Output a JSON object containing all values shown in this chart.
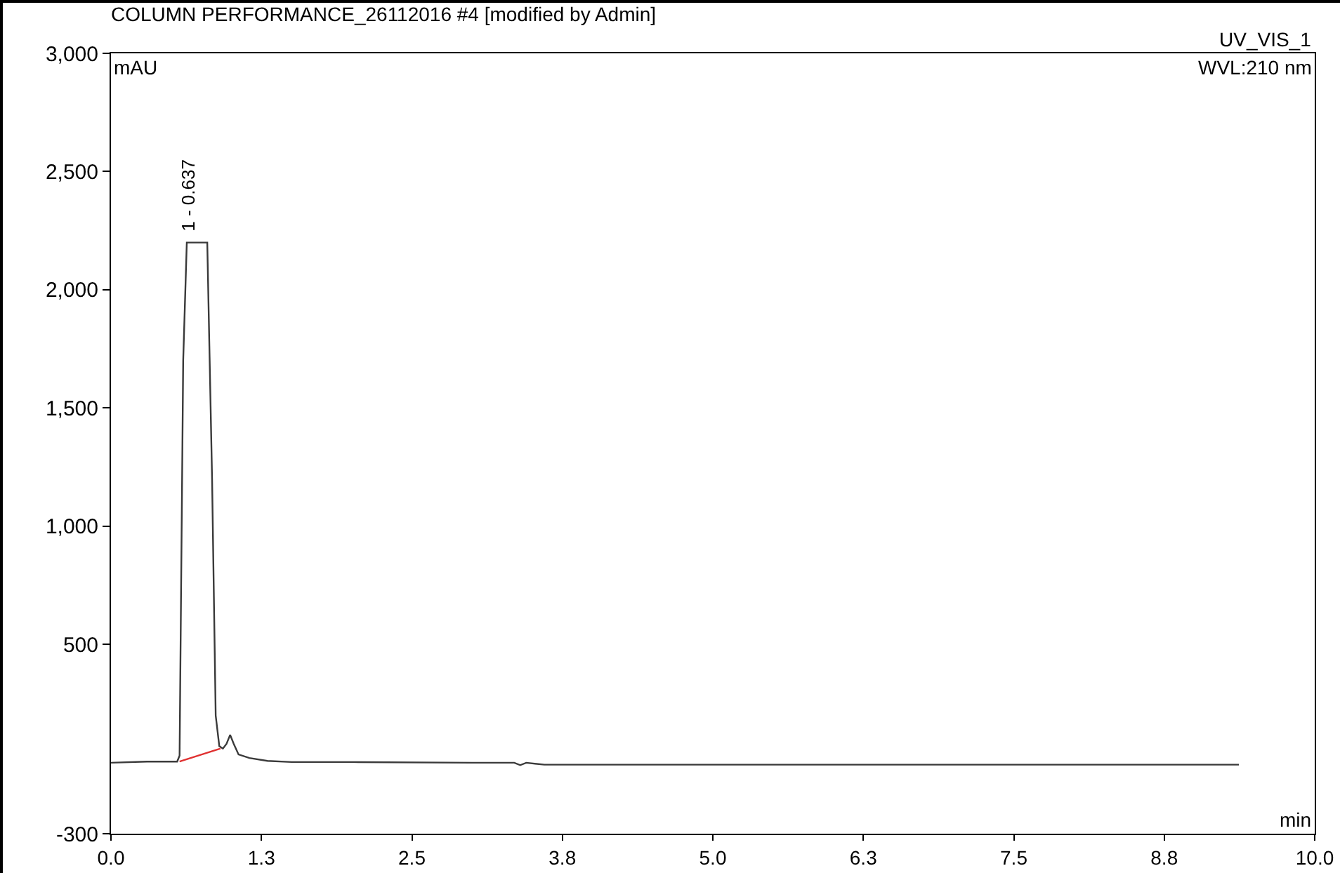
{
  "chart_data": {
    "type": "line",
    "title": "COLUMN PERFORMANCE_26112016 #4 [modified by Admin]",
    "xlabel": "min",
    "ylabel": "mAU",
    "annotations": [
      "UV_VIS_1",
      "WVL:210 nm",
      {
        "text": "1 - 0.637",
        "x": 0.637,
        "y": 2200
      }
    ],
    "series": [
      {
        "color": "#3a3a3a",
        "x": [
          0,
          0.3,
          0.55,
          0.57,
          0.6,
          0.63,
          0.7,
          0.8,
          0.84,
          0.87,
          0.9,
          0.93,
          0.96,
          0.99,
          1.02,
          1.06,
          1.15,
          1.3,
          1.5,
          2.0,
          3.0,
          3.35,
          3.4,
          3.45,
          3.6,
          5.0,
          7.0,
          9.37
        ],
        "values": [
          0,
          5,
          5,
          30,
          1700,
          2200,
          2200,
          2200,
          1200,
          200,
          70,
          60,
          80,
          118,
          80,
          35,
          20,
          8,
          3,
          3,
          0,
          0,
          -10,
          0,
          -8,
          -8,
          -8,
          -8
        ]
      },
      {
        "color": "#e03030",
        "x": [
          0.57,
          0.91
        ],
        "values": [
          5,
          60
        ]
      }
    ],
    "xlim": [
      0,
      10
    ],
    "ylim": [
      -300,
      3000
    ],
    "xticks": [
      {
        "value": 0,
        "label": "0.0"
      },
      {
        "value": 1.25,
        "label": "1.3"
      },
      {
        "value": 2.5,
        "label": "2.5"
      },
      {
        "value": 3.75,
        "label": "3.8"
      },
      {
        "value": 5,
        "label": "5.0"
      },
      {
        "value": 6.25,
        "label": "6.3"
      },
      {
        "value": 7.5,
        "label": "7.5"
      },
      {
        "value": 8.75,
        "label": "8.8"
      },
      {
        "value": 10,
        "label": "10.0"
      }
    ],
    "yticks": [
      {
        "value": -300,
        "label": "-300"
      },
      500,
      {
        "value": 1000,
        "label": "1,000"
      },
      {
        "value": 1500,
        "label": "1,500"
      },
      {
        "value": 2000,
        "label": "2,000"
      },
      {
        "value": 2500,
        "label": "2,500"
      },
      {
        "value": 3000,
        "label": "3,000"
      }
    ],
    "grid": false,
    "marker": "none",
    "line_style": "solid"
  }
}
